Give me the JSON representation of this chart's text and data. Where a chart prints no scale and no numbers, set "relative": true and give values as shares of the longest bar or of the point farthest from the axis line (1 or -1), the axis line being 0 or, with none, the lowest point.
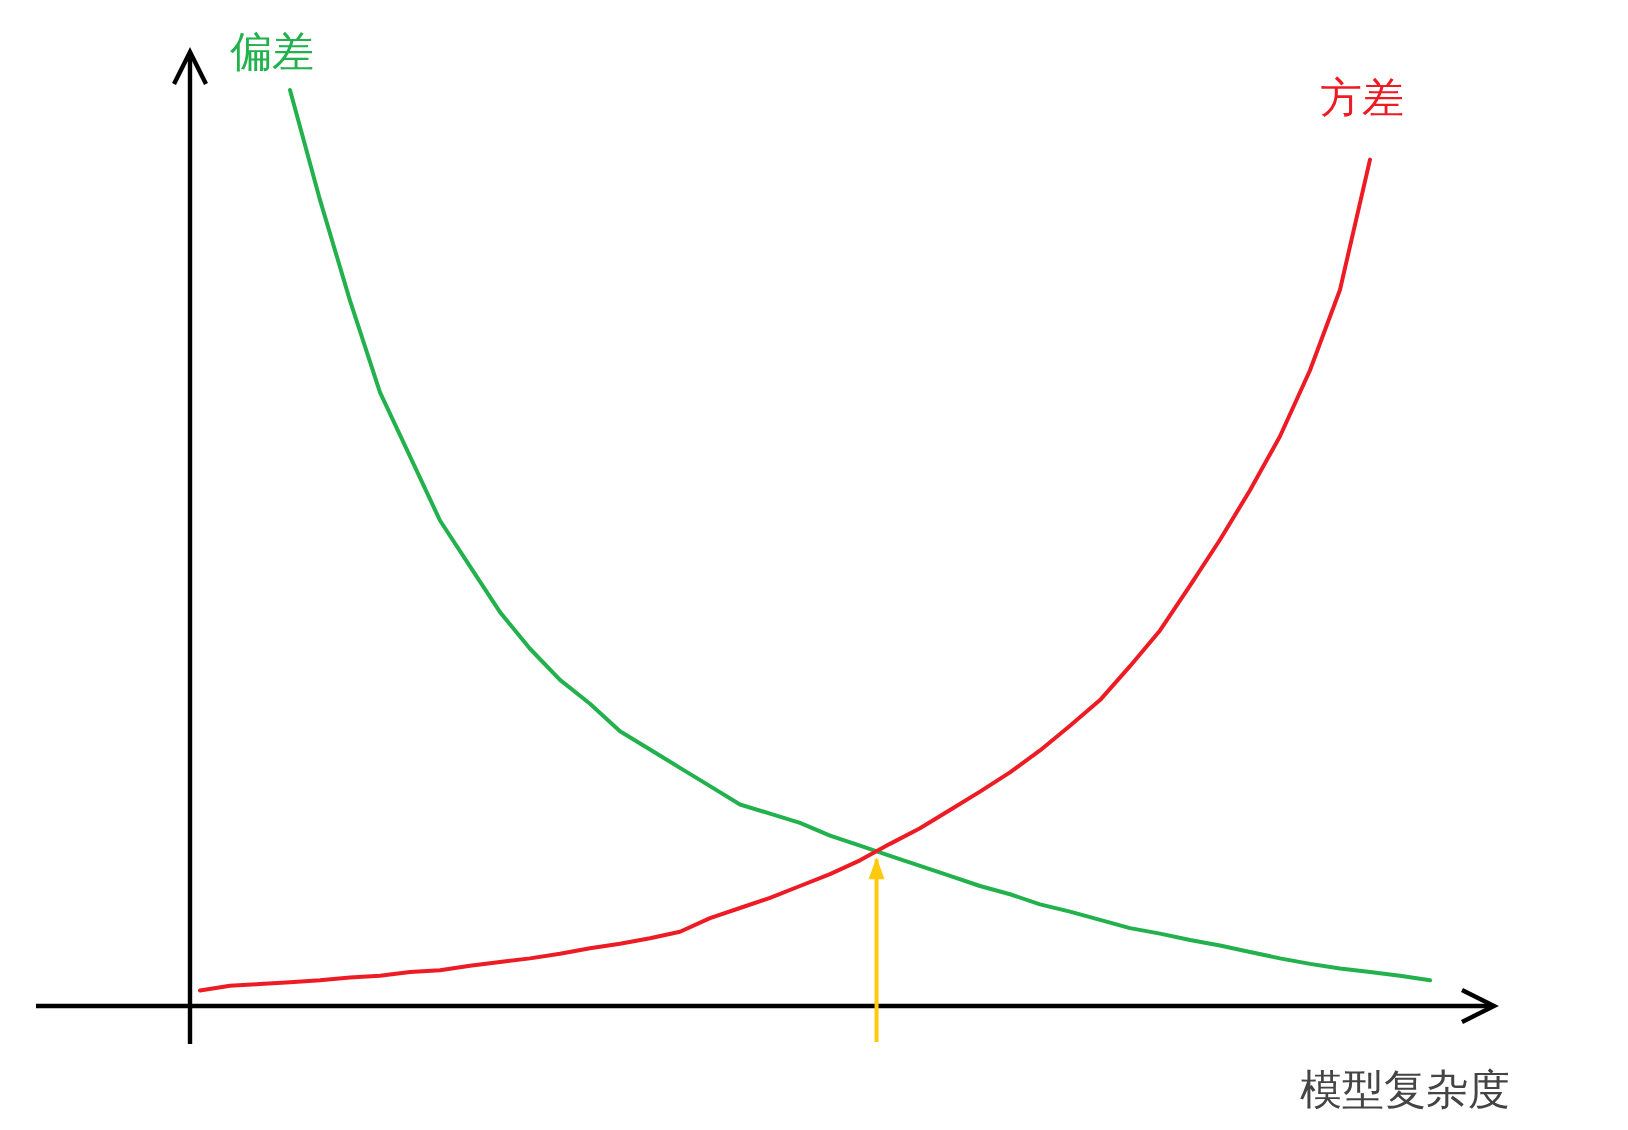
{
  "chart_data": {
    "type": "line",
    "relative": true,
    "xlabel": "模型复杂度",
    "categories": [
      null,
      null,
      null,
      null,
      null,
      null,
      null,
      null,
      null,
      null,
      null,
      null,
      null,
      null,
      null,
      null,
      null,
      null,
      null,
      null,
      null,
      null,
      null,
      null,
      null,
      null,
      null,
      null,
      null,
      null,
      null,
      null,
      null,
      null,
      null,
      null,
      null,
      null,
      null,
      null,
      null,
      null
    ],
    "series": [
      {
        "name": "偏差",
        "color": "#22b14c",
        "values": [
          null,
          null,
          null,
          1.0,
          0.88,
          0.77,
          0.67,
          0.6,
          0.53,
          0.48,
          0.43,
          0.39,
          0.356,
          0.33,
          0.3,
          0.28,
          0.26,
          0.24,
          0.22,
          0.21,
          0.2,
          0.186,
          0.175,
          0.164,
          0.153,
          0.142,
          0.131,
          0.122,
          0.111,
          0.103,
          0.094,
          0.085,
          0.079,
          0.072,
          0.066,
          0.059,
          0.052,
          0.046,
          0.041,
          0.037,
          0.033,
          0.028
        ]
      },
      {
        "name": "方差",
        "color": "#ed1c24",
        "values": [
          0.017,
          0.022,
          0.024,
          0.026,
          0.028,
          0.031,
          0.033,
          0.037,
          0.039,
          0.044,
          0.048,
          0.052,
          0.057,
          0.063,
          0.068,
          0.074,
          0.081,
          0.096,
          0.107,
          0.118,
          0.131,
          0.144,
          0.159,
          0.177,
          0.194,
          0.214,
          0.234,
          0.255,
          0.279,
          0.306,
          0.334,
          0.371,
          0.41,
          0.459,
          0.509,
          0.563,
          0.622,
          0.694,
          0.782,
          0.924,
          null,
          null
        ]
      }
    ]
  }
}
